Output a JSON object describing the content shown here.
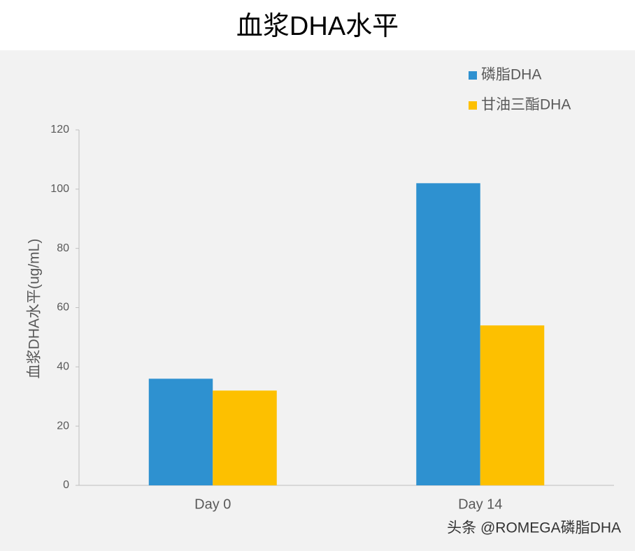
{
  "chart_data": {
    "type": "bar",
    "title": "血浆DHA水平",
    "y_label": "血浆DHA水平(ug/mL)",
    "categories": [
      "Day 0",
      "Day 14"
    ],
    "series": [
      {
        "name": "磷脂DHA",
        "color": "#2e91d0",
        "values": [
          36,
          102
        ]
      },
      {
        "name": "甘油三酯DHA",
        "color": "#fdc000",
        "values": [
          32,
          54
        ]
      }
    ],
    "ylim": [
      0,
      120
    ],
    "yticks": [
      0,
      20,
      40,
      60,
      80,
      100,
      120
    ],
    "grid": false,
    "legend": "top-right"
  },
  "watermark": "头条 @ROMEGA磷脂DHA"
}
